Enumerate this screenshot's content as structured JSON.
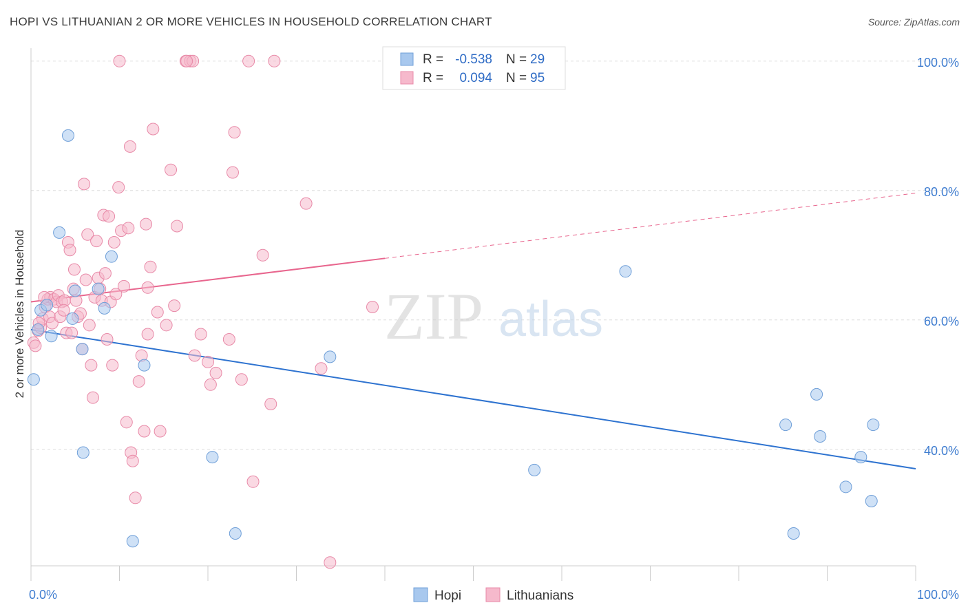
{
  "title": "HOPI VS LITHUANIAN 2 OR MORE VEHICLES IN HOUSEHOLD CORRELATION CHART",
  "source": "Source: ZipAtlas.com",
  "watermark": {
    "zip": "ZIP",
    "atlas": "atlas"
  },
  "legend_stats": [
    {
      "r_label": "R =",
      "r_value": "-0.538",
      "n_label": "N =",
      "n_value": "29",
      "color": "#a8c8ee"
    },
    {
      "r_label": "R =",
      "r_value": "0.094",
      "n_label": "N =",
      "n_value": "95",
      "color": "#f6b9cc"
    }
  ],
  "chart_data": {
    "type": "scatter",
    "title": "HOPI VS LITHUANIAN 2 OR MORE VEHICLES IN HOUSEHOLD CORRELATION CHART",
    "xlabel": "",
    "ylabel": "2 or more Vehicles in Household",
    "xlim": [
      0,
      100
    ],
    "ylim": [
      22,
      102
    ],
    "x_tick_labels": [
      "0.0%",
      "100.0%"
    ],
    "y_tick_labels": [
      "40.0%",
      "60.0%",
      "80.0%",
      "100.0%"
    ],
    "y_ticks": [
      40,
      60,
      80,
      100
    ],
    "grid": true,
    "legend_position": "bottom",
    "series": [
      {
        "name": "Hopi",
        "color": "#a8c8ee",
        "stroke": "#6f9fd8",
        "trend_color": "#2e73d0",
        "trend": {
          "x": [
            0,
            100
          ],
          "y": [
            58.5,
            37.0
          ],
          "dashed_from": null
        },
        "points": [
          [
            0.3,
            50.8
          ],
          [
            0.8,
            58.5
          ],
          [
            1.1,
            61.5
          ],
          [
            2.3,
            57.5
          ],
          [
            3.2,
            73.5
          ],
          [
            4.2,
            88.5
          ],
          [
            4.7,
            60.2
          ],
          [
            5.0,
            64.5
          ],
          [
            5.8,
            55.5
          ],
          [
            5.9,
            39.5
          ],
          [
            7.6,
            64.8
          ],
          [
            8.3,
            61.8
          ],
          [
            9.1,
            69.8
          ],
          [
            11.5,
            25.8
          ],
          [
            12.8,
            53.0
          ],
          [
            20.5,
            38.8
          ],
          [
            23.1,
            27.0
          ],
          [
            33.8,
            54.3
          ],
          [
            56.9,
            36.8
          ],
          [
            67.2,
            67.5
          ],
          [
            85.3,
            43.8
          ],
          [
            88.8,
            48.5
          ],
          [
            89.2,
            42.0
          ],
          [
            92.1,
            34.2
          ],
          [
            93.8,
            38.8
          ],
          [
            95.0,
            32.0
          ],
          [
            95.2,
            43.8
          ],
          [
            86.2,
            27.0
          ],
          [
            1.8,
            62.3
          ]
        ]
      },
      {
        "name": "Lithuanians",
        "color": "#f6b9cc",
        "stroke": "#e88aa8",
        "trend_color": "#e8668e",
        "trend": {
          "x": [
            0,
            100
          ],
          "y": [
            62.8,
            79.6
          ],
          "dashed_from": 40
        },
        "points": [
          [
            0.3,
            56.5
          ],
          [
            0.5,
            56.0
          ],
          [
            0.8,
            58.3
          ],
          [
            1.1,
            58.8
          ],
          [
            1.3,
            60.2
          ],
          [
            1.6,
            62.0
          ],
          [
            1.9,
            63.2
          ],
          [
            2.1,
            60.5
          ],
          [
            2.2,
            63.5
          ],
          [
            2.4,
            59.5
          ],
          [
            2.6,
            63.2
          ],
          [
            2.9,
            62.8
          ],
          [
            3.1,
            63.8
          ],
          [
            3.3,
            60.5
          ],
          [
            3.5,
            62.8
          ],
          [
            3.8,
            63.0
          ],
          [
            4.0,
            58.0
          ],
          [
            4.2,
            72.0
          ],
          [
            4.4,
            70.8
          ],
          [
            4.6,
            58.0
          ],
          [
            4.8,
            64.8
          ],
          [
            4.9,
            67.8
          ],
          [
            5.1,
            63.0
          ],
          [
            5.3,
            60.5
          ],
          [
            5.6,
            61.0
          ],
          [
            5.8,
            55.5
          ],
          [
            6.0,
            81.0
          ],
          [
            6.2,
            66.2
          ],
          [
            6.4,
            73.2
          ],
          [
            6.6,
            59.2
          ],
          [
            6.8,
            53.0
          ],
          [
            7.0,
            48.0
          ],
          [
            7.2,
            63.5
          ],
          [
            7.4,
            72.2
          ],
          [
            7.6,
            66.5
          ],
          [
            7.8,
            64.8
          ],
          [
            8.0,
            63.0
          ],
          [
            8.2,
            76.2
          ],
          [
            8.4,
            67.2
          ],
          [
            8.6,
            57.0
          ],
          [
            8.8,
            76.0
          ],
          [
            9.0,
            62.8
          ],
          [
            9.2,
            53.0
          ],
          [
            9.4,
            72.0
          ],
          [
            9.6,
            64.0
          ],
          [
            9.9,
            80.5
          ],
          [
            10.2,
            73.8
          ],
          [
            10.5,
            65.2
          ],
          [
            10.8,
            44.2
          ],
          [
            11.0,
            74.2
          ],
          [
            11.2,
            86.8
          ],
          [
            11.3,
            39.5
          ],
          [
            11.5,
            38.2
          ],
          [
            11.8,
            32.5
          ],
          [
            12.2,
            50.5
          ],
          [
            12.5,
            54.5
          ],
          [
            12.8,
            42.8
          ],
          [
            13.0,
            74.8
          ],
          [
            13.2,
            65.0
          ],
          [
            13.5,
            68.2
          ],
          [
            13.8,
            89.5
          ],
          [
            14.3,
            61.2
          ],
          [
            14.6,
            42.8
          ],
          [
            15.3,
            59.2
          ],
          [
            15.8,
            83.2
          ],
          [
            16.2,
            62.2
          ],
          [
            16.5,
            74.5
          ],
          [
            17.5,
            100.0
          ],
          [
            18.0,
            100.0
          ],
          [
            18.3,
            100.0
          ],
          [
            18.5,
            54.5
          ],
          [
            19.2,
            57.8
          ],
          [
            20.0,
            53.5
          ],
          [
            20.3,
            50.0
          ],
          [
            20.9,
            51.8
          ],
          [
            22.4,
            57.0
          ],
          [
            22.8,
            82.8
          ],
          [
            23.0,
            89.0
          ],
          [
            23.8,
            50.8
          ],
          [
            25.1,
            35.0
          ],
          [
            26.2,
            70.0
          ],
          [
            27.1,
            47.0
          ],
          [
            31.1,
            78.0
          ],
          [
            32.8,
            52.5
          ],
          [
            33.8,
            22.5
          ],
          [
            38.6,
            62.0
          ],
          [
            41.2,
            100.0
          ],
          [
            27.5,
            100.0
          ],
          [
            24.6,
            100.0
          ],
          [
            10.0,
            100.0
          ],
          [
            17.6,
            100.0
          ],
          [
            13.2,
            57.8
          ],
          [
            3.7,
            61.5
          ],
          [
            1.5,
            63.5
          ],
          [
            0.9,
            59.5
          ]
        ]
      }
    ]
  },
  "bottom_legend": [
    {
      "label": "Hopi",
      "color": "#a8c8ee"
    },
    {
      "label": "Lithuanians",
      "color": "#f6b9cc"
    }
  ]
}
